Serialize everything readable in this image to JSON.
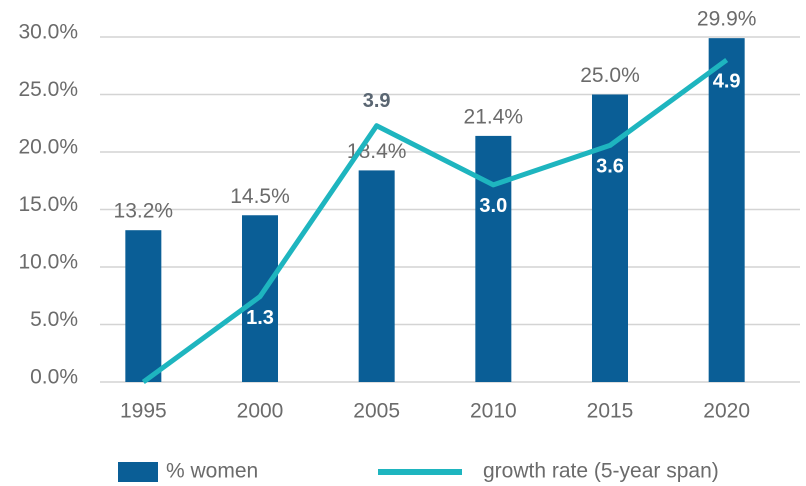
{
  "chart_data": {
    "type": "bar",
    "categories": [
      "1995",
      "2000",
      "2005",
      "2010",
      "2015",
      "2020"
    ],
    "series": [
      {
        "name": "% women",
        "type": "bar",
        "color": "#0a5e96",
        "values": [
          13.2,
          14.5,
          18.4,
          21.4,
          25.0,
          29.9
        ],
        "value_labels": [
          "13.2%",
          "14.5%",
          "18.4%",
          "21.4%",
          "25.0%",
          "29.9%"
        ]
      },
      {
        "name": "growth rate (5-year span)",
        "type": "line",
        "axis": "y2",
        "color": "#1eb5bf",
        "values": [
          0,
          1.3,
          3.9,
          3.0,
          3.6,
          4.9
        ],
        "value_labels": [
          null,
          "1.3",
          "3.9",
          "3.0",
          "3.6",
          "4.9"
        ]
      }
    ],
    "ylim": [
      0,
      30
    ],
    "yticks": [
      {
        "value": 0,
        "label": "0.0%"
      },
      {
        "value": 5,
        "label": "5.0%"
      },
      {
        "value": 10,
        "label": "10.0%"
      },
      {
        "value": 15,
        "label": "15.0%"
      },
      {
        "value": 20,
        "label": "20.0%"
      },
      {
        "value": 25,
        "label": "25.0%"
      },
      {
        "value": 30,
        "label": "30.0%"
      }
    ],
    "y2lim": [
      0,
      5.25
    ],
    "grid": true,
    "legend": "bottom"
  }
}
